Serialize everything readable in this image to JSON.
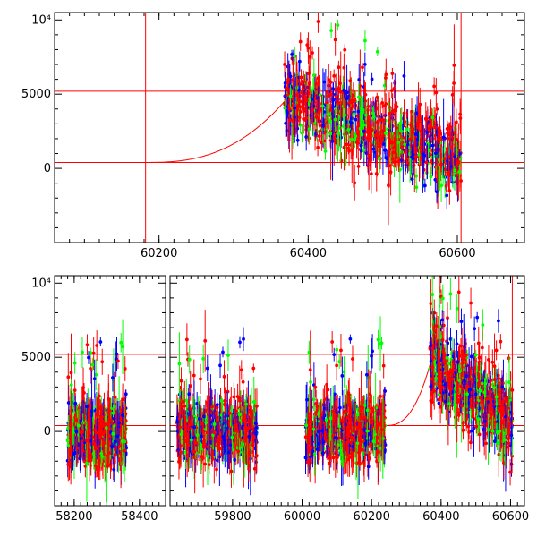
{
  "colors": {
    "model": "#ff0000",
    "series_red": "#ff0000",
    "series_blue": "#0000ff",
    "series_green": "#00ff00",
    "axis": "#000000"
  },
  "chart_data": [
    {
      "type": "scatter",
      "title": "",
      "xlabel": "",
      "ylabel": "",
      "xlim": [
        60060,
        60690
      ],
      "ylim": [
        -5000,
        10500
      ],
      "x_ticks": [
        {
          "v": 60200,
          "label": "60200"
        },
        {
          "v": 60400,
          "label": "60400"
        },
        {
          "v": 60600,
          "label": "60600"
        }
      ],
      "y_ticks": [
        {
          "v": 0,
          "label": "0"
        },
        {
          "v": 5000,
          "label": "5000"
        },
        {
          "v": 10000,
          "label": "10⁴"
        }
      ],
      "reference_lines": {
        "h": [
          400,
          5200
        ],
        "v": [
          60182,
          60605
        ]
      },
      "model_curve": {
        "x_start": 60182,
        "x_peak": 60368,
        "y_base": 400,
        "y_peak": 4500,
        "x_end": 60605,
        "y_end": 400
      },
      "clusters": [
        {
          "x0": 60368,
          "x1": 60605,
          "y_start": 4800,
          "y_end": 500,
          "scatter": 1200
        }
      ],
      "grid": false
    },
    {
      "type": "scatter",
      "title": "",
      "xlabel": "",
      "ylabel": "",
      "broken_axis": true,
      "segments": [
        {
          "xlim": [
            58140,
            58480
          ],
          "ticks": [
            {
              "v": 58200,
              "label": "58200"
            },
            {
              "v": 58400,
              "label": "58400"
            }
          ]
        },
        {
          "xlim": [
            59620,
            60640
          ],
          "ticks": [
            {
              "v": 59800,
              "label": "59800"
            },
            {
              "v": 60000,
              "label": "60000"
            },
            {
              "v": 60200,
              "label": "60200"
            },
            {
              "v": 60400,
              "label": "60400"
            },
            {
              "v": 60600,
              "label": "60600"
            }
          ]
        }
      ],
      "ylim": [
        -5000,
        10500
      ],
      "y_ticks": [
        {
          "v": 0,
          "label": "0"
        },
        {
          "v": 5000,
          "label": "5000"
        },
        {
          "v": 10000,
          "label": "10⁴"
        }
      ],
      "reference_lines": {
        "h": [
          400,
          5200
        ]
      },
      "model_curve": {
        "x_start": 60240,
        "x_peak": 60368,
        "y_base": 400,
        "y_peak": 4500,
        "x_end": 60605,
        "y_end": 400
      },
      "clusters": [
        {
          "x0": 58180,
          "x1": 58360,
          "y_start": -200,
          "y_end": -200,
          "scatter": 900
        },
        {
          "x0": 59640,
          "x1": 59870,
          "y_start": 0,
          "y_end": 0,
          "scatter": 900
        },
        {
          "x0": 60010,
          "x1": 60240,
          "y_start": 0,
          "y_end": 0,
          "scatter": 900
        },
        {
          "x0": 60368,
          "x1": 60605,
          "y_start": 4800,
          "y_end": 500,
          "scatter": 1200
        }
      ],
      "grid": false
    }
  ]
}
